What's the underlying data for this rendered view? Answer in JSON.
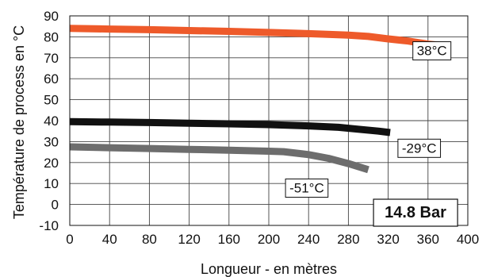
{
  "chart_data": {
    "type": "line",
    "xlabel": "Longueur - en mètres",
    "ylabel": "Température de process en °C",
    "xlim": [
      0,
      400
    ],
    "ylim": [
      -10,
      90
    ],
    "xticks": [
      0,
      40,
      80,
      120,
      160,
      200,
      240,
      280,
      320,
      360,
      400
    ],
    "yticks": [
      -10,
      0,
      10,
      20,
      30,
      40,
      50,
      60,
      70,
      80,
      90
    ],
    "grid": true,
    "pressure_label": "14.8 Bar",
    "series": [
      {
        "name": "38°C",
        "color": "#ee5a2a",
        "points": [
          [
            0,
            84
          ],
          [
            40,
            83.7
          ],
          [
            80,
            83.4
          ],
          [
            120,
            83
          ],
          [
            160,
            82.6
          ],
          [
            200,
            82.1
          ],
          [
            240,
            81.5
          ],
          [
            280,
            80.8
          ],
          [
            300,
            80.2
          ],
          [
            320,
            79
          ],
          [
            340,
            78
          ],
          [
            360,
            76.5
          ],
          [
            376,
            75.8
          ]
        ]
      },
      {
        "name": "-29°C",
        "color": "#111111",
        "points": [
          [
            0,
            39.5
          ],
          [
            40,
            39.3
          ],
          [
            80,
            39.1
          ],
          [
            120,
            38.8
          ],
          [
            160,
            38.5
          ],
          [
            200,
            38.1
          ],
          [
            240,
            37.5
          ],
          [
            270,
            36.8
          ],
          [
            290,
            35.9
          ],
          [
            310,
            35
          ],
          [
            322,
            34.3
          ]
        ]
      },
      {
        "name": "-51°C",
        "color": "#6d6d6d",
        "points": [
          [
            0,
            27.5
          ],
          [
            40,
            27.1
          ],
          [
            80,
            26.7
          ],
          [
            120,
            26.3
          ],
          [
            160,
            25.9
          ],
          [
            200,
            25.4
          ],
          [
            215,
            25.2
          ],
          [
            240,
            23.8
          ],
          [
            260,
            22
          ],
          [
            280,
            19.5
          ],
          [
            300,
            16.6
          ]
        ]
      }
    ],
    "annotations": [
      {
        "text": "38°C",
        "x": 344,
        "y": 73.5
      },
      {
        "text": "-29°C",
        "x": 329,
        "y": 27
      },
      {
        "text": "-51°C",
        "x": 216,
        "y": 8
      }
    ]
  }
}
